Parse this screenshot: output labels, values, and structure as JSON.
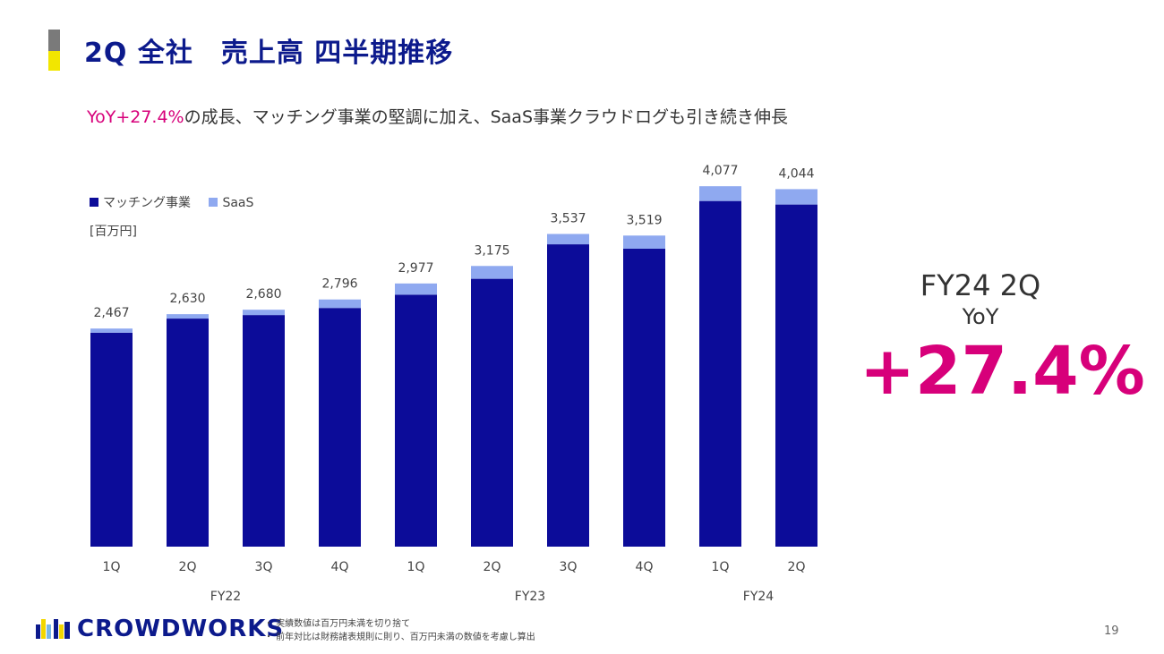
{
  "header": {
    "title": "2Q 全社　売上高 四半期推移",
    "subtitle_highlight": "YoY+27.4%",
    "subtitle_rest": "の成長、マッチング事業の堅調に加え、SaaS事業クラウドログも引き続き伸長"
  },
  "chart_data": {
    "type": "bar",
    "stacked": true,
    "unit_label": "[百万円]",
    "categories": [
      "1Q",
      "2Q",
      "3Q",
      "4Q",
      "1Q",
      "2Q",
      "3Q",
      "4Q",
      "1Q",
      "2Q"
    ],
    "groups": [
      {
        "label": "FY22",
        "start": 0,
        "end": 3
      },
      {
        "label": "FY23",
        "start": 4,
        "end": 7
      },
      {
        "label": "FY24",
        "start": 8,
        "end": 9
      }
    ],
    "series": [
      {
        "name": "マッチング事業",
        "color": "#0c0c99",
        "values": [
          2420,
          2580,
          2620,
          2700,
          2850,
          3030,
          3420,
          3370,
          3910,
          3870
        ]
      },
      {
        "name": "SaaS",
        "color": "#8fa9f0",
        "values": [
          47,
          50,
          60,
          96,
          127,
          145,
          117,
          149,
          167,
          174
        ]
      }
    ],
    "totals": [
      2467,
      2630,
      2680,
      2796,
      2977,
      3175,
      3537,
      3519,
      4077,
      4044
    ],
    "total_labels": [
      "2,467",
      "2,630",
      "2,680",
      "2,796",
      "2,977",
      "3,175",
      "3,537",
      "3,519",
      "4,077",
      "4,044"
    ],
    "ylim": [
      0,
      4200
    ],
    "legend": "top-left",
    "grid": false
  },
  "kpi": {
    "period": "FY24 2Q",
    "label": "YoY",
    "value": "+27.4%"
  },
  "footer": {
    "logo_text": "CROWDWORKS",
    "notes": [
      "・ 実績数値は百万円未満を切り捨て",
      "・ 前年対比は財務諸表規則に則り、百万円未満の数値を考慮し算出"
    ],
    "page_number": "19"
  }
}
